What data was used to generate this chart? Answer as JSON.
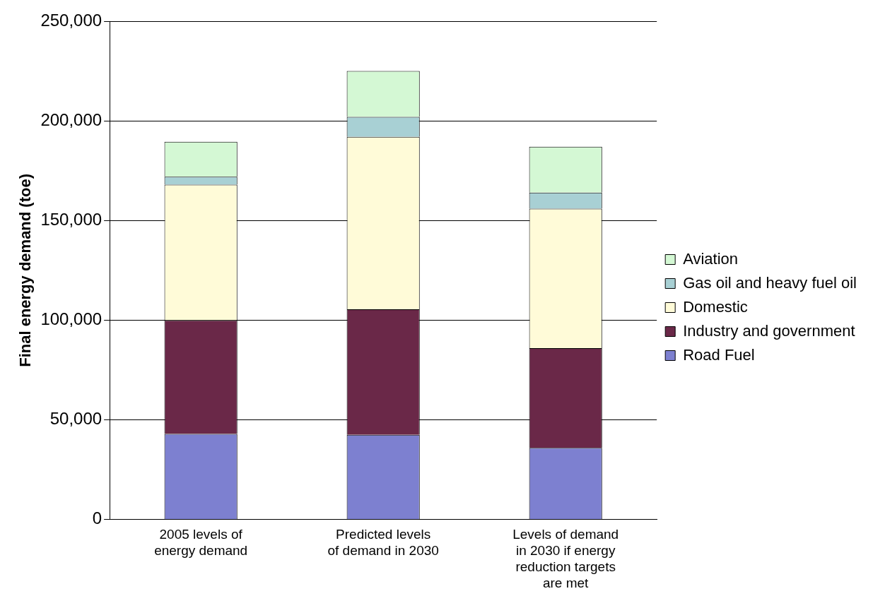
{
  "chart_data": {
    "type": "bar",
    "stacked": true,
    "ylabel": "Final energy demand (toe)",
    "categories": [
      "2005 levels of energy demand",
      "Predicted levels of demand in 2030",
      "Levels of demand in 2030 if energy reduction targets are met"
    ],
    "series": [
      {
        "name": "Road Fuel",
        "color": "#7d80d0",
        "values": [
          43000,
          42500,
          36000
        ]
      },
      {
        "name": "Industry and government",
        "color": "#6a2848",
        "values": [
          57000,
          63000,
          50000
        ]
      },
      {
        "name": "Domestic",
        "color": "#fffbd8",
        "values": [
          68000,
          86500,
          70000
        ]
      },
      {
        "name": "Gas oil and heavy fuel oil",
        "color": "#a8d0d4",
        "values": [
          4000,
          10000,
          8000
        ]
      },
      {
        "name": "Aviation",
        "color": "#d4f8d4",
        "values": [
          17500,
          23000,
          23000
        ]
      }
    ],
    "ylim": [
      0,
      250000
    ],
    "yticks": [
      0,
      {
        "value": 50000,
        "label": "50,000"
      },
      {
        "value": 100000,
        "label": "100,000"
      },
      {
        "value": 150000,
        "label": "150,000"
      },
      {
        "value": 200000,
        "label": "200,000"
      },
      {
        "value": 250000,
        "label": "250,000"
      }
    ],
    "grid": "y",
    "legend": "right"
  }
}
